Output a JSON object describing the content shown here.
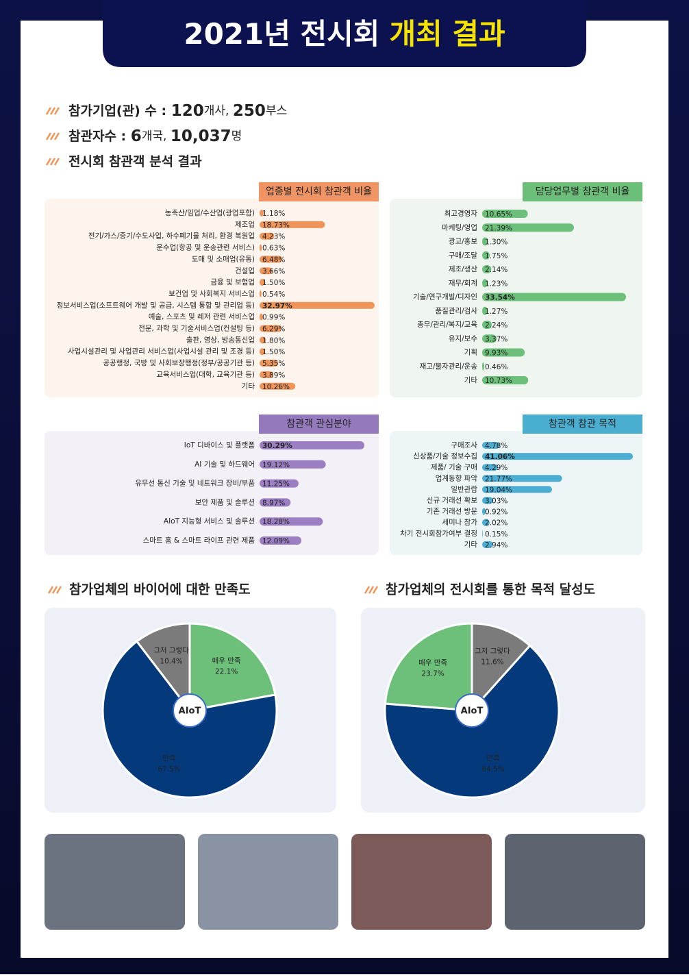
{
  "header": {
    "title": "2021년 전시회",
    "title_highlight": "개최 결과"
  },
  "summary": [
    [
      "참가기업(관) 수 : ",
      "120",
      "개사, ",
      "250",
      "부스"
    ],
    [
      "참관자수 : ",
      "6",
      "개국, ",
      "10,037",
      "명"
    ],
    [
      "전시회 참관객 분석 결과"
    ]
  ],
  "pie_section_titles": [
    "참가업체의 바이어에 대한 만족도",
    "참가업체의 전시회를 통한 목적 달성도"
  ],
  "logo_text": "AIoT",
  "chart_data": [
    {
      "type": "bar",
      "title": "업종별 전시회 참관객 비율",
      "color": "#f0955a",
      "tag_color": "#ef9462",
      "panel_color": "#fdf4ee",
      "categories": [
        "농축산/임업/수산업(광업포함)",
        "제조업",
        "전기/가스/증기/수도사업, 하수폐기물 처리, 환경 복원업",
        "운수업(항공 및 운송관련 서비스)",
        "도매 및 소매업(유통)",
        "건설업",
        "금융 및 보험업",
        "보건업 및 사회복지 서비스업",
        "정보서비스업(소프트웨어 개발 및 공급, 시스템 통합 및 관리업 등)",
        "예술, 스포츠 및 레저 관련 서비스업",
        "전문, 과학 및 기술서비스업(컨설팅 등)",
        "출판, 영상, 방송통신업",
        "사업시설관리 및 사업관리 서비스업(사업시설 관리 및 조경 등)",
        "공공행정, 국방 및 사회보장행정(정부/공공기관 등)",
        "교육서비스업(대학, 교육기관 등)",
        "기타"
      ],
      "values": [
        1.18,
        18.73,
        4.23,
        0.63,
        6.48,
        3.66,
        1.5,
        0.54,
        32.97,
        0.99,
        6.29,
        1.8,
        1.5,
        5.35,
        3.89,
        10.26
      ],
      "value_labels": [
        "1.18%",
        "18.73%",
        "4.23%",
        "0.63%",
        "6.48%",
        "3.66%",
        "1.50%",
        "0.54%",
        "32.97%",
        "0.99%",
        "6.29%",
        "1.80%",
        "1.50%",
        "5.35%",
        "3.89%",
        "10.26%"
      ]
    },
    {
      "type": "bar",
      "title": "담당업무별 참관객 비율",
      "color": "#6cc07a",
      "tag_color": "#6cbf78",
      "panel_color": "#eef6ef",
      "categories": [
        "최고경영자",
        "마케팅/영업",
        "광고/홍보",
        "구매/조달",
        "제조/생산",
        "재무/회계",
        "기술/연구개발/디자인",
        "품질관리/검사",
        "총무/관리/복지/교육",
        "유지/보수",
        "기획",
        "재고/물자관리/운송",
        "기타"
      ],
      "values": [
        10.65,
        21.39,
        1.3,
        1.75,
        2.14,
        1.23,
        33.54,
        1.27,
        2.24,
        3.37,
        9.93,
        0.46,
        10.73
      ],
      "value_labels": [
        "10.65%",
        "21.39%",
        "1.30%",
        "1.75%",
        "2.14%",
        "1.23%",
        "33.54%",
        "1.27%",
        "2.24%",
        "3.37%",
        "9.93%",
        "0.46%",
        "10.73%"
      ]
    },
    {
      "type": "bar",
      "title": "참관객 관심분야",
      "color": "#9b7fc2",
      "tag_color": "#9479bd",
      "panel_color": "#f3f0f7",
      "categories": [
        "IoT 디바이스 및 플랫폼",
        "AI 기술 및 하드웨어",
        "유무선 통신 기술 및 네트워크 장비/부품",
        "보안 제품 및 솔루션",
        "AIoT 지능형 서비스 및 솔루션",
        "스마트 홈 & 스마트 라이프 관련 제품"
      ],
      "values": [
        30.29,
        19.12,
        11.25,
        8.97,
        18.28,
        12.09
      ],
      "value_labels": [
        "30.29%",
        "19.12%",
        "11.25%",
        "8.97%",
        "18.28%",
        "12.09%"
      ]
    },
    {
      "type": "bar",
      "title": "참관객 참관 목적",
      "color": "#4baed2",
      "tag_color": "#4aaed0",
      "panel_color": "#edf5f7",
      "categories": [
        "구매조사",
        "신상품/기술 정보수집",
        "제품/ 기술 구매",
        "업계동향 파악",
        "일반관람",
        "신규 거래선 확보",
        "기존 거래선 방문",
        "세미나 참가",
        "차기 전시회참가여부 결정",
        "기타"
      ],
      "values": [
        4.78,
        41.06,
        4.29,
        21.77,
        19.04,
        3.03,
        0.92,
        2.02,
        0.15,
        2.94
      ],
      "value_labels": [
        "4.78%",
        "41.06%",
        "4.29%",
        "21.77%",
        "19.04%",
        "3.03%",
        "0.92%",
        "2.02%",
        "0.15%",
        "2.94%"
      ]
    },
    {
      "type": "pie",
      "categories": [
        "매우 만족",
        "만족",
        "그저 그렇다"
      ],
      "values": [
        22.1,
        67.5,
        10.4
      ],
      "value_labels": [
        "22.1%",
        "67.5%",
        "10.4%"
      ],
      "colors": [
        "#6cc07a",
        "#043a7c",
        "#7b7b7b"
      ]
    },
    {
      "type": "pie",
      "categories": [
        "그저 그렇다",
        "만족",
        "매우 만족"
      ],
      "values": [
        11.6,
        64.5,
        23.7
      ],
      "value_labels": [
        "11.6%",
        "64.5%",
        "23.7%"
      ],
      "colors": [
        "#7b7b7b",
        "#043a7c",
        "#6cc07a"
      ]
    }
  ]
}
